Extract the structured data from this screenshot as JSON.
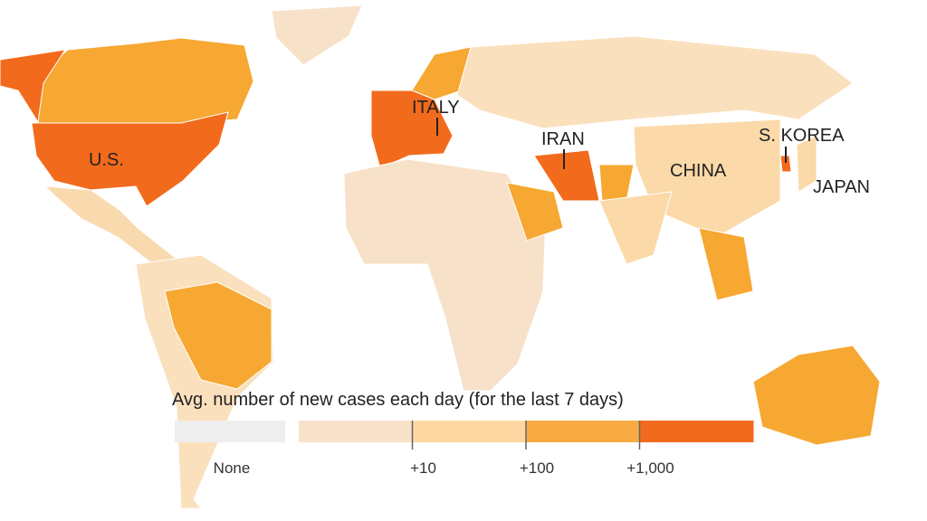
{
  "labels": [
    {
      "text": "U.S."
    },
    {
      "text": "ITALY"
    },
    {
      "text": "IRAN"
    },
    {
      "text": "CHINA"
    },
    {
      "text": "S. KOREA"
    },
    {
      "text": "JAPAN"
    }
  ],
  "legend": {
    "title": "Avg. number of new cases each day (for the last 7 days)",
    "none_label": "None",
    "none_color": "#eeeeee",
    "bins": [
      {
        "color": "#f7e1c8"
      },
      {
        "color": "#fcd7a2"
      },
      {
        "color": "#f8ab42"
      },
      {
        "color": "#f26a1e"
      }
    ],
    "ticks": [
      "+10",
      "+100",
      "+1,000"
    ]
  }
}
